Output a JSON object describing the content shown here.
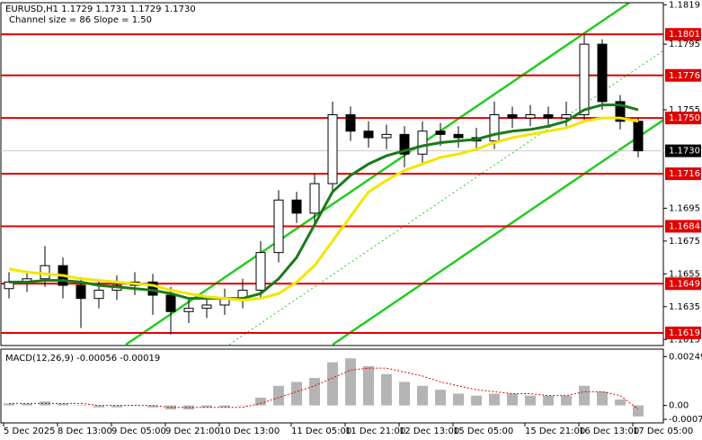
{
  "chart_data": [
    {
      "type": "candlestick",
      "title": "EURUSD,H1  1.1729 1.1731 1.1729 1.1730",
      "subtitle": "Channel size = 86 Slope = 1.50",
      "x": [
        "5 Dec 2025",
        null,
        null,
        "8 Dec 13:00",
        null,
        null,
        "9 Dec 05:00",
        null,
        null,
        "9 Dec 21:00",
        null,
        null,
        "10 Dec 13:00",
        null,
        null,
        null,
        "11 Dec 05:00",
        null,
        null,
        "11 Dec 21:00",
        null,
        null,
        "12 Dec 13:00",
        null,
        null,
        "15 Dec 05:00",
        null,
        null,
        null,
        "15 Dec 21:00",
        null,
        null,
        "16 Dec 13:00",
        null,
        null,
        "17 Dec 05:00"
      ],
      "open": [
        1.1646,
        1.165,
        1.1652,
        1.166,
        1.1648,
        1.164,
        1.1645,
        1.1648,
        1.165,
        1.1642,
        1.1632,
        1.1634,
        1.1636,
        1.164,
        1.1645,
        1.1668,
        1.17,
        1.1692,
        1.171,
        1.1752,
        1.1742,
        1.1738,
        1.174,
        1.1728,
        1.1742,
        1.174,
        1.1738,
        1.1736,
        1.1752,
        1.175,
        1.1752,
        1.175,
        1.1752,
        1.1795,
        1.176,
        1.1748
      ],
      "high": [
        1.1656,
        1.1657,
        1.1672,
        1.1665,
        1.1653,
        1.1651,
        1.1654,
        1.1656,
        1.1655,
        1.1647,
        1.164,
        1.1641,
        1.1646,
        1.1652,
        1.1675,
        1.1706,
        1.1705,
        1.1716,
        1.176,
        1.1757,
        1.1748,
        1.1746,
        1.1745,
        1.1748,
        1.1747,
        1.1745,
        1.1744,
        1.176,
        1.1757,
        1.1758,
        1.1757,
        1.176,
        1.1801,
        1.1798,
        1.1764,
        1.175
      ],
      "low": [
        1.164,
        1.1644,
        1.1647,
        1.164,
        1.1622,
        1.1634,
        1.1639,
        1.1642,
        1.163,
        1.1618,
        1.1625,
        1.1628,
        1.163,
        1.1634,
        1.164,
        1.1662,
        1.1686,
        1.1686,
        1.1705,
        1.1736,
        1.1732,
        1.1731,
        1.172,
        1.1722,
        1.1733,
        1.1732,
        1.173,
        1.1731,
        1.1744,
        1.1745,
        1.1744,
        1.1745,
        1.1748,
        1.1755,
        1.1743,
        1.1726
      ],
      "close": [
        1.165,
        1.1652,
        1.166,
        1.1648,
        1.164,
        1.1645,
        1.1648,
        1.165,
        1.1642,
        1.1632,
        1.1634,
        1.1636,
        1.164,
        1.1645,
        1.1668,
        1.17,
        1.1692,
        1.171,
        1.1752,
        1.1742,
        1.1738,
        1.174,
        1.1728,
        1.1742,
        1.174,
        1.1738,
        1.1736,
        1.1752,
        1.175,
        1.1752,
        1.175,
        1.1752,
        1.1795,
        1.176,
        1.1748,
        1.173
      ],
      "series": [
        {
          "color": "#1a7a1a",
          "values": [
            1.165,
            1.165,
            1.1651,
            1.1651,
            1.165,
            1.1648,
            1.1647,
            1.1646,
            1.1645,
            1.1643,
            1.164,
            1.164,
            1.164,
            1.164,
            1.1643,
            1.1652,
            1.1665,
            1.1685,
            1.1705,
            1.1715,
            1.1722,
            1.1727,
            1.173,
            1.1733,
            1.1735,
            1.1736,
            1.1737,
            1.174,
            1.1742,
            1.1743,
            1.1745,
            1.1748,
            1.1755,
            1.1758,
            1.1758,
            1.1755
          ]
        },
        {
          "color": "#f2e600",
          "values": [
            1.1658,
            1.1656,
            1.1655,
            1.1654,
            1.1652,
            1.1651,
            1.165,
            1.1649,
            1.1648,
            1.1645,
            1.1643,
            1.1641,
            1.164,
            1.1639,
            1.164,
            1.1643,
            1.165,
            1.166,
            1.1675,
            1.169,
            1.1705,
            1.1712,
            1.1718,
            1.1722,
            1.1726,
            1.1728,
            1.1731,
            1.1735,
            1.1738,
            1.174,
            1.1742,
            1.1744,
            1.1748,
            1.175,
            1.175,
            1.1748
          ]
        }
      ],
      "levels": [
        1.1801,
        1.1776,
        {
          "value": 1.175,
          "label": "1.1750"
        },
        1.1716,
        1.1684,
        1.1649,
        1.1619
      ],
      "level_color": "#e00000",
      "price": {
        "value": 1.173,
        "label": "1.1730"
      },
      "ylim": [
        1.16113,
        1.18203
      ],
      "yticks": [
        1.1819,
        1.1795,
        1.1755,
        1.1695,
        1.1675,
        1.1655,
        1.1635,
        1.1615
      ]
    },
    {
      "type": "macd",
      "title": "MACD(12,26,9) -0.00056 -0.00019",
      "values": [
        0.0001,
        0.0001,
        0.0002,
        0.0001,
        0,
        -0.0001,
        -0.0001,
        0,
        -0.0001,
        -0.0002,
        -0.0002,
        -0.0001,
        -0.0001,
        0,
        0.0004,
        0.001,
        0.0012,
        0.0014,
        0.0022,
        0.0024,
        0.002,
        0.0016,
        0.0012,
        0.001,
        0.0008,
        0.0006,
        0.0005,
        0.0006,
        0.0006,
        0.0005,
        0.0005,
        0.0005,
        0.001,
        0.0007,
        0.0003,
        -0.00056
      ],
      "signal": [
        0.0001,
        0.0001,
        0.0001,
        0.0001,
        0.0001,
        0,
        0,
        0,
        0,
        -0.0001,
        -0.0001,
        -0.0001,
        -0.0001,
        -0.0001,
        0.0001,
        0.0004,
        0.0007,
        0.001,
        0.0014,
        0.0018,
        0.0019,
        0.0019,
        0.0017,
        0.0015,
        0.0012,
        0.001,
        0.0008,
        0.0007,
        0.0006,
        0.0006,
        0.0005,
        0.0005,
        0.0007,
        0.0007,
        0.0005,
        -0.00019
      ],
      "color": "#b4b4b4",
      "signal_color": "#e00000",
      "ylim": [
        -0.00089,
        0.00287
      ],
      "yticks": [
        0.00249,
        {
          "value": 0,
          "label": "0.00"
        },
        -0.00071
      ]
    }
  ]
}
